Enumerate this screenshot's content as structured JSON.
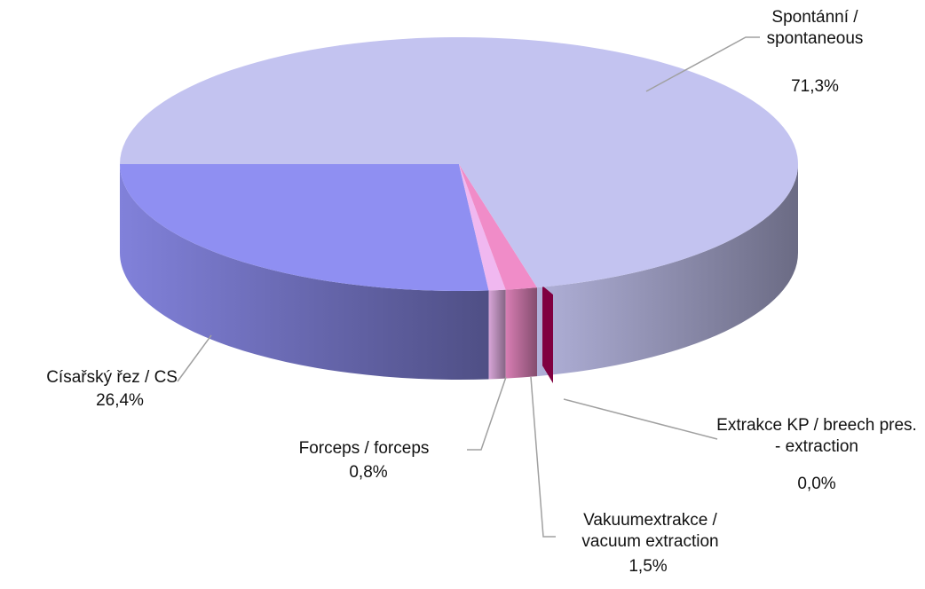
{
  "chart_data": {
    "type": "pie3d",
    "categories": [
      "Císařský řez / CS",
      "Forceps / forceps",
      "Vakuumextrakce / vacuum extraction",
      "Extrakce KP / breech pres. - extraction",
      "Spontánní / spontaneous"
    ],
    "values": [
      26.4,
      0.8,
      1.5,
      0.0,
      71.3
    ],
    "value_labels": [
      "26,4%",
      "0,8%",
      "1,5%",
      "0,0%",
      "71,3%"
    ],
    "colors": [
      "#8f8ff2",
      "#f0b8f0",
      "#f08cc8",
      "#800040",
      "#c3c3f0"
    ]
  }
}
